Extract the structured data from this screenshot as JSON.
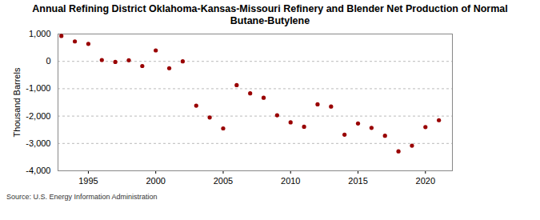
{
  "chart_data": {
    "type": "scatter",
    "title": "Annual Refining District Oklahoma-Kansas-Missouri Refinery and Blender Net Production of Normal Butane-Butylene",
    "y_label": "Thousand Barrels",
    "source": "Source: U.S. Energy Information Administration",
    "x": [
      1993,
      1994,
      1995,
      1996,
      1997,
      1998,
      1999,
      2000,
      2001,
      2002,
      2003,
      2004,
      2005,
      2006,
      2007,
      2008,
      2009,
      2010,
      2011,
      2012,
      2013,
      2014,
      2015,
      2016,
      2017,
      2018,
      2019,
      2020,
      2021
    ],
    "values": [
      930,
      730,
      640,
      50,
      -20,
      40,
      -170,
      400,
      -250,
      0,
      -1620,
      -2050,
      -2450,
      -870,
      -1170,
      -1330,
      -1970,
      -2230,
      -2390,
      -1570,
      -1650,
      -2680,
      -2270,
      -2430,
      -2720,
      -3290,
      -3080,
      -2400,
      -2150
    ],
    "color": "#990000",
    "marker": "circle",
    "xlim": [
      1992.75,
      2022
    ],
    "xticks": [
      1995,
      2000,
      2005,
      2010,
      2015,
      2020
    ],
    "ylim": [
      -4000,
      1000
    ],
    "yticks": [
      {
        "value": -4000,
        "label": "-4,000"
      },
      {
        "value": -3000,
        "label": "-3,000"
      },
      {
        "value": -2000,
        "label": "-2,000"
      },
      {
        "value": -1000,
        "label": "-1,000"
      },
      0,
      {
        "value": 1000,
        "label": "1,000"
      }
    ],
    "grid": true
  }
}
